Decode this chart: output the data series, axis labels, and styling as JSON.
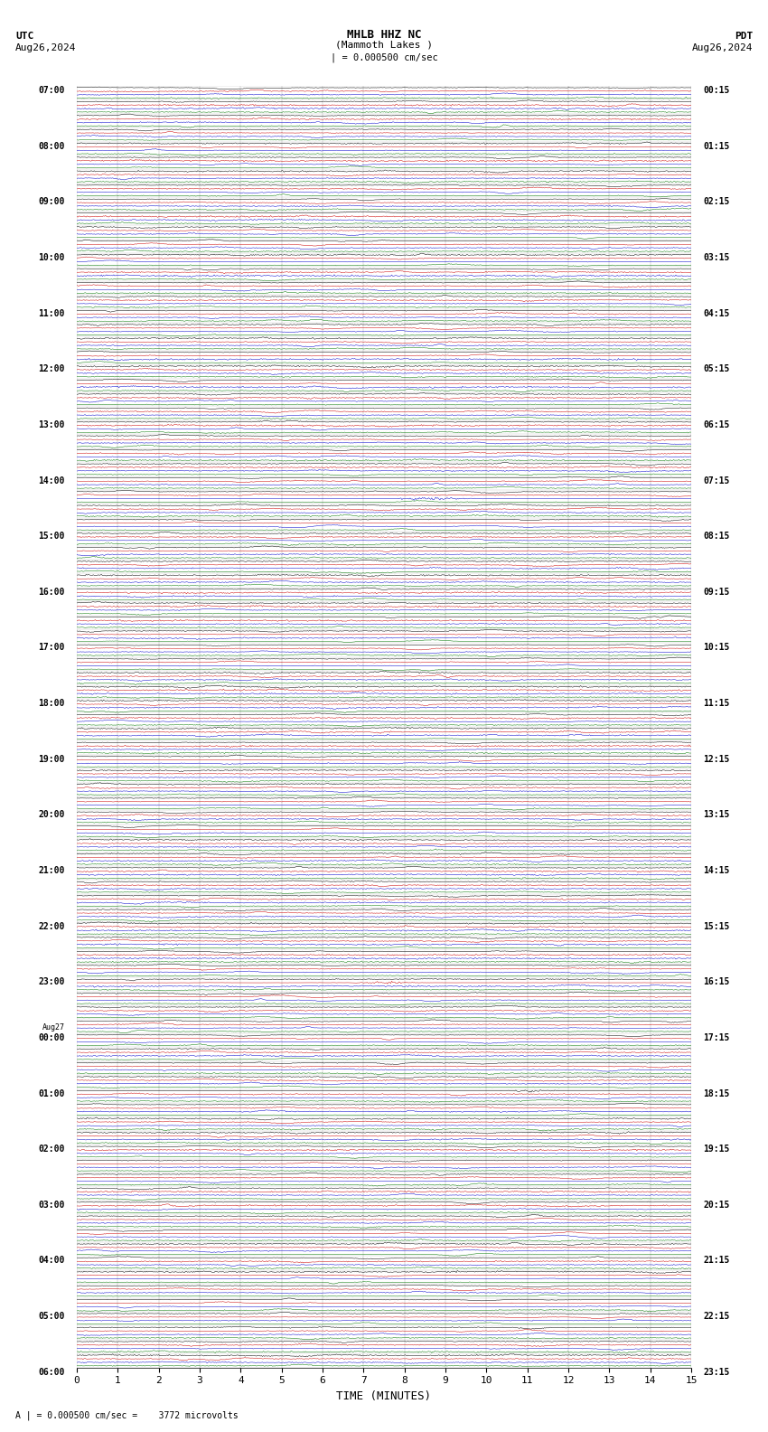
{
  "title_line1": "MHLB HHZ NC",
  "title_line2": "(Mammoth Lakes )",
  "scale_label": "| = 0.000500 cm/sec",
  "utc_label": "UTC",
  "utc_date": "Aug26,2024",
  "pdt_label": "PDT",
  "pdt_date": "Aug26,2024",
  "bottom_note": "A | = 0.000500 cm/sec =    3772 microvolts",
  "xlabel": "TIME (MINUTES)",
  "xmin": 0,
  "xmax": 15,
  "xticks": [
    0,
    1,
    2,
    3,
    4,
    5,
    6,
    7,
    8,
    9,
    10,
    11,
    12,
    13,
    14,
    15
  ],
  "bg_color": "#ffffff",
  "grid_color": "#999999",
  "trace_colors": [
    "#000000",
    "#cc0000",
    "#0000cc",
    "#007700"
  ],
  "n_rows": 92,
  "traces_per_row": 4,
  "noise_amp": [
    0.3,
    0.15,
    0.12,
    0.22
  ],
  "earthquake_row": 29,
  "earthquake_trace": 2,
  "event2_row": 64,
  "event2_trace": 1,
  "event3_row": 72,
  "event3_trace": 0,
  "fig_width": 8.5,
  "fig_height": 15.84,
  "dpi": 100,
  "utc_row_labels": {
    "0": "07:00",
    "4": "08:00",
    "8": "09:00",
    "12": "10:00",
    "16": "11:00",
    "20": "12:00",
    "24": "13:00",
    "28": "14:00",
    "32": "15:00",
    "36": "16:00",
    "40": "17:00",
    "44": "18:00",
    "48": "19:00",
    "52": "20:00",
    "56": "21:00",
    "60": "22:00",
    "64": "23:00",
    "68": "00:00",
    "72": "01:00",
    "76": "02:00",
    "80": "03:00",
    "84": "04:00",
    "88": "05:00",
    "92": "06:00"
  },
  "aug27_row": 68,
  "pdt_row_labels": {
    "0": "00:15",
    "4": "01:15",
    "8": "02:15",
    "12": "03:15",
    "16": "04:15",
    "20": "05:15",
    "24": "06:15",
    "28": "07:15",
    "32": "08:15",
    "36": "09:15",
    "40": "10:15",
    "44": "11:15",
    "48": "12:15",
    "52": "13:15",
    "56": "14:15",
    "60": "15:15",
    "64": "16:15",
    "68": "17:15",
    "72": "18:15",
    "76": "19:15",
    "80": "20:15",
    "84": "21:15",
    "88": "22:15",
    "92": "23:15"
  }
}
